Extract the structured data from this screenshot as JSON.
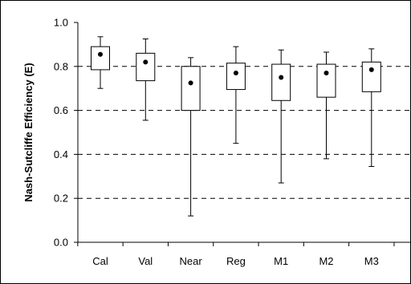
{
  "chart_data": {
    "type": "box",
    "title": "",
    "xlabel": "",
    "ylabel": "Nash-Sutcliffe Efficiency (E)",
    "ylim": [
      0,
      1
    ],
    "yticks": [
      "0.0",
      "0.2",
      "0.4",
      "0.6",
      "0.8",
      "1.0"
    ],
    "reference_lines": [
      0.2,
      0.4,
      0.6,
      0.8
    ],
    "grid": "dashed horizontal at 0.2 intervals",
    "categories": [
      "Cal",
      "Val",
      "Near",
      "Reg",
      "M1",
      "M2",
      "M3"
    ],
    "boxes": [
      {
        "category": "Cal",
        "whisker_low": 0.7,
        "q1": 0.785,
        "q3": 0.89,
        "whisker_high": 0.935,
        "mean": 0.855
      },
      {
        "category": "Val",
        "whisker_low": 0.555,
        "q1": 0.735,
        "q3": 0.86,
        "whisker_high": 0.925,
        "mean": 0.82
      },
      {
        "category": "Near",
        "whisker_low": 0.12,
        "q1": 0.6,
        "q3": 0.8,
        "whisker_high": 0.84,
        "mean": 0.725
      },
      {
        "category": "Reg",
        "whisker_low": 0.45,
        "q1": 0.695,
        "q3": 0.815,
        "whisker_high": 0.89,
        "mean": 0.77
      },
      {
        "category": "M1",
        "whisker_low": 0.27,
        "q1": 0.645,
        "q3": 0.81,
        "whisker_high": 0.875,
        "mean": 0.75
      },
      {
        "category": "M2",
        "whisker_low": 0.38,
        "q1": 0.66,
        "q3": 0.81,
        "whisker_high": 0.865,
        "mean": 0.77
      },
      {
        "category": "M3",
        "whisker_low": 0.345,
        "q1": 0.685,
        "q3": 0.82,
        "whisker_high": 0.88,
        "mean": 0.785
      }
    ]
  }
}
